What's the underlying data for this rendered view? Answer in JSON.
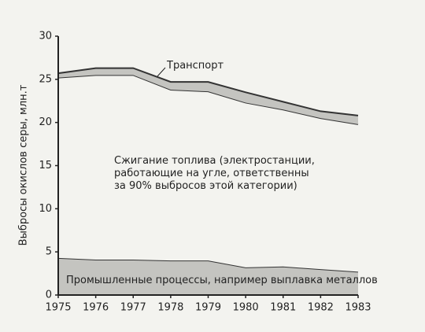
{
  "chart_data": {
    "type": "stacked_area",
    "y_label": "Выбросы окислов серы, млн.т",
    "x": [
      1975,
      1976,
      1977,
      1978,
      1979,
      1980,
      1981,
      1982,
      1983
    ],
    "xlim": [
      1975,
      1983
    ],
    "xticks": [
      1975,
      1976,
      1977,
      1978,
      1979,
      1980,
      1981,
      1982,
      1983
    ],
    "ylim": [
      0,
      30
    ],
    "yticks": [
      0,
      5,
      10,
      15,
      20,
      25,
      30
    ],
    "series": [
      {
        "name": "Промышленные процессы, например выплавка металлов",
        "color": "#c4c4c0",
        "values": [
          4.3,
          4.1,
          4.1,
          4.0,
          4.0,
          3.2,
          3.3,
          3.0,
          2.7
        ]
      },
      {
        "name": "Сжигание топлива (электростанции,\nработающие на угле, ответственны\nза 90% выбросов этой категории)",
        "color": "#f3f3ef",
        "values": [
          20.9,
          21.4,
          21.4,
          19.8,
          19.6,
          19.1,
          18.2,
          17.5,
          17.1
        ]
      },
      {
        "name": "Транспорт",
        "color": "#c4c4c0",
        "values": [
          0.5,
          0.8,
          0.8,
          0.9,
          1.1,
          1.2,
          0.9,
          0.8,
          1.0
        ]
      }
    ]
  }
}
